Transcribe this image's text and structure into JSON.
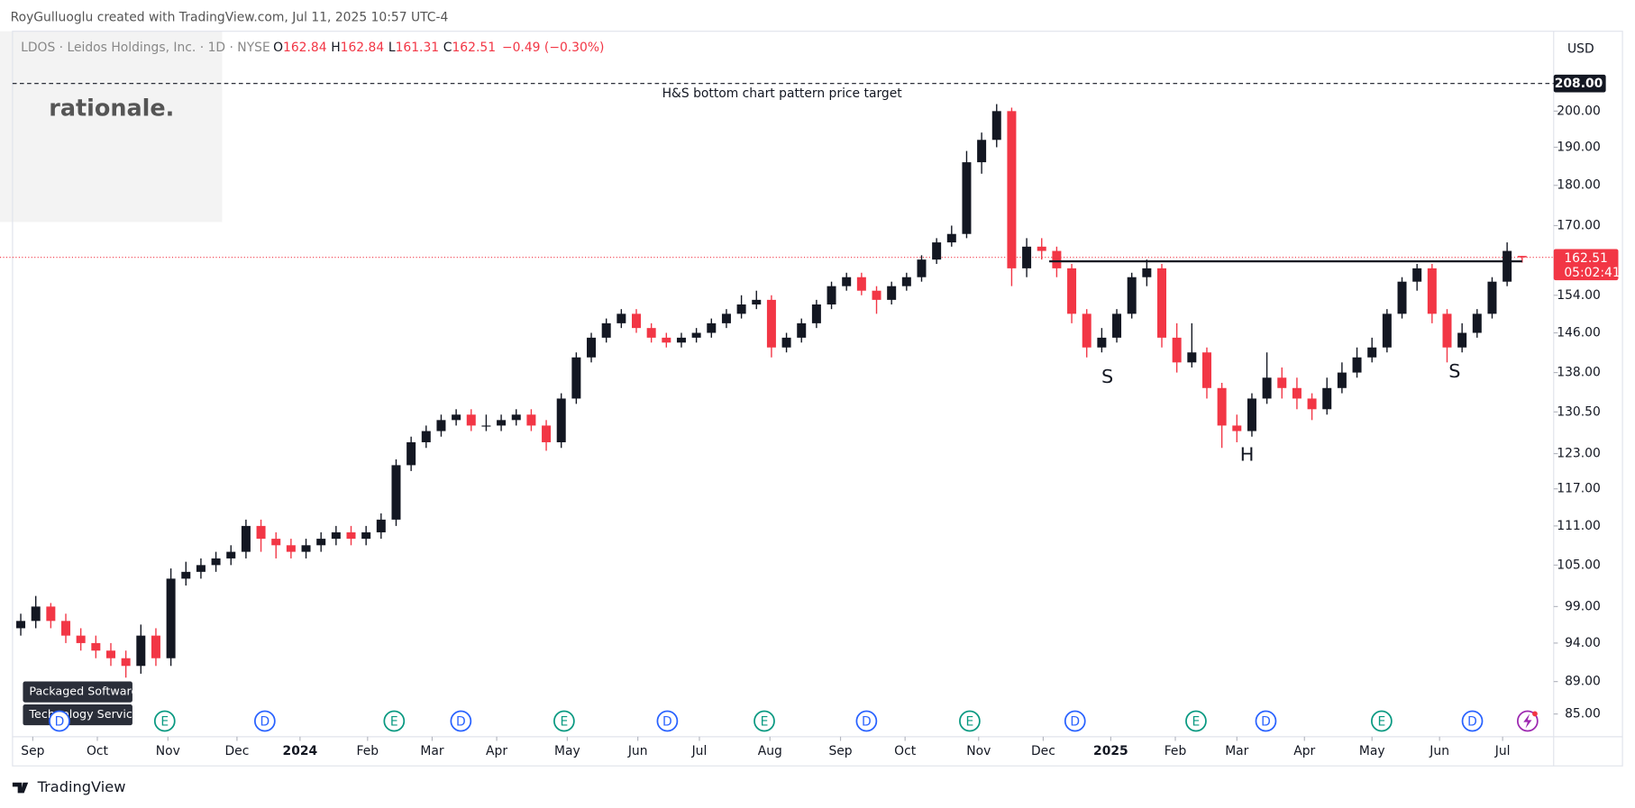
{
  "top_note": "RoyGulluoglu created with TradingView.com, Jul 11, 2025 10:57 UTC-4",
  "watermark": "rationale.",
  "header": {
    "symbol": "LDOS · Leidos Holdings, Inc. · 1D · NYSE",
    "items": [
      {
        "label": "O",
        "value": 162.84
      },
      {
        "label": "H",
        "value": 162.84
      },
      {
        "label": "L",
        "value": 161.31
      },
      {
        "label": "C",
        "value": 162.51
      }
    ],
    "change": "−0.49 (−0.30%)"
  },
  "currency": "USD",
  "tags": [
    "Packaged Software",
    "Technology Services"
  ],
  "events": [
    "D",
    "E",
    "D",
    "E",
    "D",
    "E",
    "D",
    "E",
    "D",
    "E",
    "D",
    "E",
    "D",
    "E",
    "D"
  ],
  "annotations": [
    "S",
    "H",
    "S"
  ],
  "footer": "TradingView",
  "chart_data": {
    "type": "candlestick",
    "log_scale": true,
    "grid": false,
    "up_color": "#131722",
    "down_color": "#f23645",
    "xlim": [
      -0.55,
      102.1
    ],
    "ylim": [
      82.3,
      224
    ],
    "xticks": [
      {
        "value": 0.8,
        "label": "Sep"
      },
      {
        "value": 5.1,
        "label": "Oct"
      },
      {
        "value": 9.8,
        "label": "Nov"
      },
      {
        "value": 14.4,
        "label": "Dec"
      },
      {
        "value": 18.6,
        "label": "2024"
      },
      {
        "value": 23.1,
        "label": "Feb"
      },
      {
        "value": 27.4,
        "label": "Mar"
      },
      {
        "value": 31.7,
        "label": "Apr"
      },
      {
        "value": 36.4,
        "label": "May"
      },
      {
        "value": 41.1,
        "label": "Jun"
      },
      {
        "value": 45.2,
        "label": "Jul"
      },
      {
        "value": 49.9,
        "label": "Aug"
      },
      {
        "value": 54.6,
        "label": "Sep"
      },
      {
        "value": 58.9,
        "label": "Oct"
      },
      {
        "value": 63.8,
        "label": "Nov"
      },
      {
        "value": 68.1,
        "label": "Dec"
      },
      {
        "value": 72.6,
        "label": "2025"
      },
      {
        "value": 76.9,
        "label": "Feb"
      },
      {
        "value": 81.0,
        "label": "Mar"
      },
      {
        "value": 85.5,
        "label": "Apr"
      },
      {
        "value": 90.0,
        "label": "May"
      },
      {
        "value": 94.5,
        "label": "Jun"
      },
      {
        "value": 98.7,
        "label": "Jul"
      }
    ],
    "yticks": [
      {
        "value": 85,
        "label": "85.00"
      },
      {
        "value": 89,
        "label": "89.00"
      },
      {
        "value": 94,
        "label": "94.00"
      },
      {
        "value": 99,
        "label": "99.00"
      },
      {
        "value": 105,
        "label": "105.00"
      },
      {
        "value": 111,
        "label": "111.00"
      },
      {
        "value": 117,
        "label": "117.00"
      },
      {
        "value": 123,
        "label": "123.00"
      },
      {
        "value": 130.5,
        "label": "130.50"
      },
      {
        "value": 138,
        "label": "138.00"
      },
      {
        "value": 146,
        "label": "146.00"
      },
      {
        "value": 154,
        "label": "154.00"
      },
      {
        "value": 170,
        "label": "170.00"
      },
      {
        "value": 180,
        "label": "180.00"
      },
      {
        "value": 190,
        "label": "190.00"
      },
      {
        "value": 200,
        "label": "200.00"
      }
    ],
    "target": {
      "value": 208,
      "label": "208.00",
      "text": "H&S bottom chart pattern price target"
    },
    "neckline": {
      "value": 161.6,
      "from": 68.5,
      "to": 100
    },
    "last_price": {
      "value": 162.51,
      "countdown": "05:02:41"
    },
    "candles": [
      [
        96,
        98,
        95,
        97
      ],
      [
        97,
        100.5,
        96,
        99
      ],
      [
        99,
        99.5,
        96,
        97
      ],
      [
        97,
        98,
        94,
        95
      ],
      [
        95,
        96,
        93,
        94
      ],
      [
        94,
        95,
        92,
        93
      ],
      [
        93,
        94,
        91,
        92
      ],
      [
        92,
        93,
        89.5,
        91
      ],
      [
        91,
        96.5,
        90,
        95
      ],
      [
        95,
        96,
        91,
        92
      ],
      [
        92,
        104.5,
        91,
        103
      ],
      [
        103,
        105.5,
        102,
        104
      ],
      [
        104,
        106,
        103,
        105
      ],
      [
        105,
        107,
        104,
        106
      ],
      [
        106,
        108,
        105,
        107
      ],
      [
        107,
        112,
        106,
        111
      ],
      [
        111,
        112,
        107,
        109
      ],
      [
        109,
        110,
        106,
        108
      ],
      [
        108,
        109,
        106,
        107
      ],
      [
        107,
        109,
        106,
        108
      ],
      [
        108,
        110,
        107,
        109
      ],
      [
        109,
        111,
        108,
        110
      ],
      [
        110,
        111,
        108,
        109
      ],
      [
        109,
        111,
        108,
        110
      ],
      [
        110,
        113,
        109,
        112
      ],
      [
        112,
        122,
        111,
        121
      ],
      [
        121,
        126,
        120,
        125
      ],
      [
        125,
        128,
        124,
        127
      ],
      [
        127,
        130,
        126,
        129
      ],
      [
        129,
        131,
        128,
        130
      ],
      [
        130,
        131,
        127,
        128
      ],
      [
        128,
        130,
        127,
        128
      ],
      [
        128,
        130,
        127,
        129
      ],
      [
        129,
        131,
        128,
        130
      ],
      [
        130,
        131,
        127,
        128
      ],
      [
        128,
        129,
        123.5,
        125
      ],
      [
        125,
        134,
        124,
        133
      ],
      [
        133,
        142,
        132,
        141
      ],
      [
        141,
        146,
        140,
        145
      ],
      [
        145,
        149,
        144,
        148
      ],
      [
        148,
        151,
        147,
        150
      ],
      [
        150,
        151,
        146,
        147
      ],
      [
        147,
        148,
        144,
        145
      ],
      [
        145,
        146,
        143,
        144
      ],
      [
        144,
        146,
        143,
        145
      ],
      [
        145,
        147,
        144,
        146
      ],
      [
        146,
        149,
        145,
        148
      ],
      [
        148,
        151,
        147,
        150
      ],
      [
        150,
        154,
        149,
        152
      ],
      [
        152,
        155,
        151,
        153
      ],
      [
        153,
        154,
        141,
        143
      ],
      [
        143,
        146,
        142,
        145
      ],
      [
        145,
        149,
        144,
        148
      ],
      [
        148,
        153,
        147,
        152
      ],
      [
        152,
        157,
        151,
        156
      ],
      [
        156,
        159,
        155,
        158
      ],
      [
        158,
        159,
        154,
        155
      ],
      [
        155,
        156,
        150,
        153
      ],
      [
        153,
        157,
        152,
        156
      ],
      [
        156,
        159,
        155,
        158
      ],
      [
        158,
        163,
        157,
        162
      ],
      [
        162,
        167,
        161,
        166
      ],
      [
        166,
        170,
        165,
        168
      ],
      [
        168,
        189,
        167,
        186
      ],
      [
        186,
        194,
        183,
        192
      ],
      [
        192,
        202,
        190,
        200
      ],
      [
        200,
        201,
        156,
        160
      ],
      [
        160,
        167,
        158,
        165
      ],
      [
        165,
        167,
        162,
        164
      ],
      [
        164,
        165,
        158,
        160
      ],
      [
        160,
        161,
        148,
        150
      ],
      [
        150,
        151,
        141,
        143
      ],
      [
        143,
        147,
        142,
        145
      ],
      [
        145,
        151,
        144,
        150
      ],
      [
        150,
        159,
        149,
        158
      ],
      [
        158,
        162,
        156,
        160
      ],
      [
        160,
        161,
        143,
        145
      ],
      [
        145,
        148,
        138,
        140
      ],
      [
        140,
        148,
        139,
        142
      ],
      [
        142,
        143,
        133,
        135
      ],
      [
        135,
        136,
        124,
        128
      ],
      [
        128,
        130,
        125,
        127
      ],
      [
        127,
        134,
        126,
        133
      ],
      [
        133,
        142,
        132,
        137
      ],
      [
        137,
        139,
        133,
        135
      ],
      [
        135,
        137,
        131,
        133
      ],
      [
        133,
        134,
        129,
        131
      ],
      [
        131,
        137,
        130,
        135
      ],
      [
        135,
        140,
        134,
        138
      ],
      [
        138,
        143,
        137,
        141
      ],
      [
        141,
        145,
        140,
        143
      ],
      [
        143,
        151,
        142,
        150
      ],
      [
        150,
        158,
        149,
        157
      ],
      [
        157,
        161,
        155,
        160
      ],
      [
        160,
        161,
        148,
        150
      ],
      [
        150,
        151,
        140,
        143
      ],
      [
        143,
        148,
        142,
        146
      ],
      [
        146,
        151,
        145,
        150
      ],
      [
        150,
        158,
        149,
        157
      ],
      [
        157,
        166,
        156,
        164
      ],
      [
        162.84,
        162.84,
        161.31,
        162.51
      ]
    ]
  }
}
